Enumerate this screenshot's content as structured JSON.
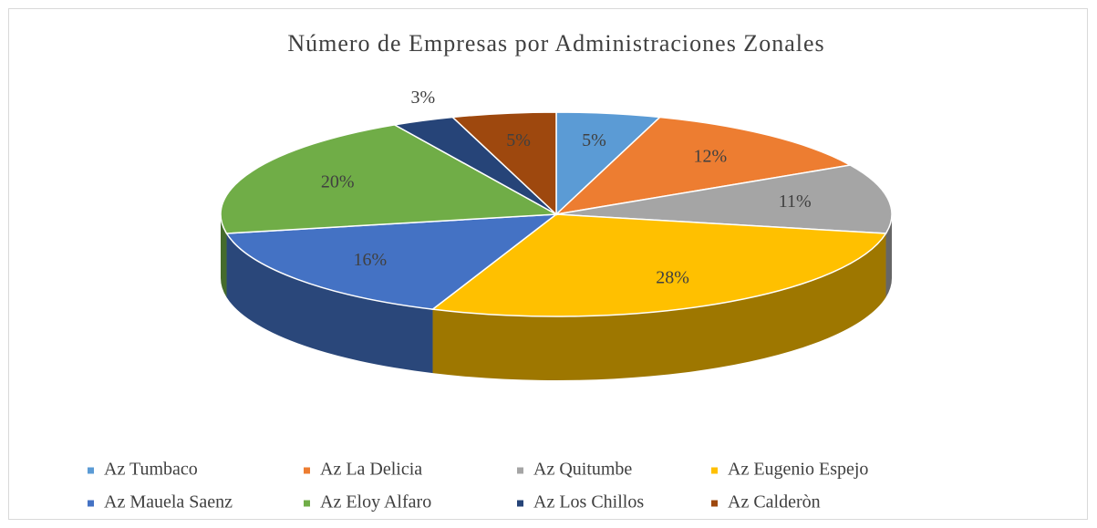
{
  "chart_data": {
    "type": "pie",
    "title": "Número de Empresas por Administraciones  Zonales",
    "categories": [
      "Az Tumbaco",
      "Az La Delicia",
      "Az Quitumbe",
      "Az Eugenio Espejo",
      "Az Mauela Saenz",
      "Az Eloy Alfaro",
      "Az Los Chillos",
      "Az Calderòn"
    ],
    "values": [
      5,
      12,
      11,
      28,
      16,
      20,
      3,
      5
    ],
    "value_labels": [
      "5%",
      "12%",
      "11%",
      "28%",
      "16%",
      "20%",
      "3%",
      "5%"
    ],
    "colors": [
      "#5b9bd5",
      "#ed7d31",
      "#a5a5a5",
      "#ffc000",
      "#4472c4",
      "#70ad47",
      "#264478",
      "#9e480e"
    ],
    "legend": "bottom"
  }
}
